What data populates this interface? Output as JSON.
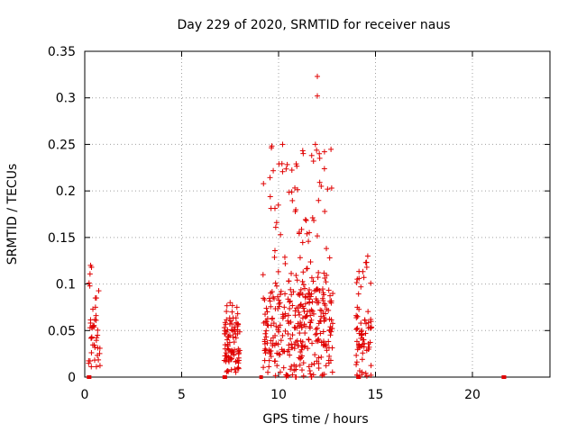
{
  "chart_data": {
    "type": "scatter",
    "title": "Day 229 of 2020, SRMTID for receiver naus",
    "xlabel": "GPS time / hours",
    "ylabel": "SRMTID / TECUs",
    "xlim": [
      0,
      24
    ],
    "ylim": [
      0,
      0.35
    ],
    "xticks": [
      0,
      5,
      10,
      15,
      20
    ],
    "yticks": [
      0,
      0.05,
      0.1,
      0.15,
      0.2,
      0.25,
      0.3,
      0.35
    ],
    "ytick_labels": [
      "0",
      "0.05",
      "0.1",
      "0.15",
      "0.2",
      "0.25",
      "0.3",
      "0.35"
    ],
    "grid": true,
    "marker": "+",
    "series_color": "#e00000",
    "baseline_markers_x": [
      0.2,
      0.25,
      7.2,
      7.25,
      9.1,
      14.1,
      14.15,
      21.6,
      21.65
    ],
    "clusters": [
      {
        "x_start": 0.2,
        "x_end": 0.8,
        "n": 40,
        "y_min": 0.01,
        "y_typ": 0.04,
        "y_max": 0.12,
        "outliers": [
          [
            0.3,
            0.12
          ],
          [
            0.35,
            0.118
          ],
          [
            0.55,
            0.085
          ],
          [
            0.6,
            0.085
          ]
        ]
      },
      {
        "x_start": 7.2,
        "x_end": 8.0,
        "n": 90,
        "y_min": 0.005,
        "y_typ": 0.04,
        "y_max": 0.08,
        "outliers": [
          [
            7.5,
            0.08
          ],
          [
            7.6,
            0.07
          ]
        ]
      },
      {
        "x_start": 9.2,
        "x_end": 12.8,
        "n": 380,
        "y_min": 0.0,
        "y_typ": 0.06,
        "y_max": 0.25,
        "outliers": [
          [
            12.0,
            0.323
          ],
          [
            12.0,
            0.302
          ],
          [
            11.9,
            0.25
          ],
          [
            12.1,
            0.24
          ],
          [
            11.8,
            0.232
          ],
          [
            12.2,
            0.205
          ],
          [
            9.2,
            0.11
          ],
          [
            10.1,
            0.153
          ]
        ]
      },
      {
        "x_start": 14.0,
        "x_end": 14.8,
        "n": 70,
        "y_min": 0.0,
        "y_typ": 0.05,
        "y_max": 0.13,
        "outliers": [
          [
            14.6,
            0.13
          ],
          [
            14.5,
            0.123
          ],
          [
            14.55,
            0.118
          ]
        ]
      }
    ]
  }
}
